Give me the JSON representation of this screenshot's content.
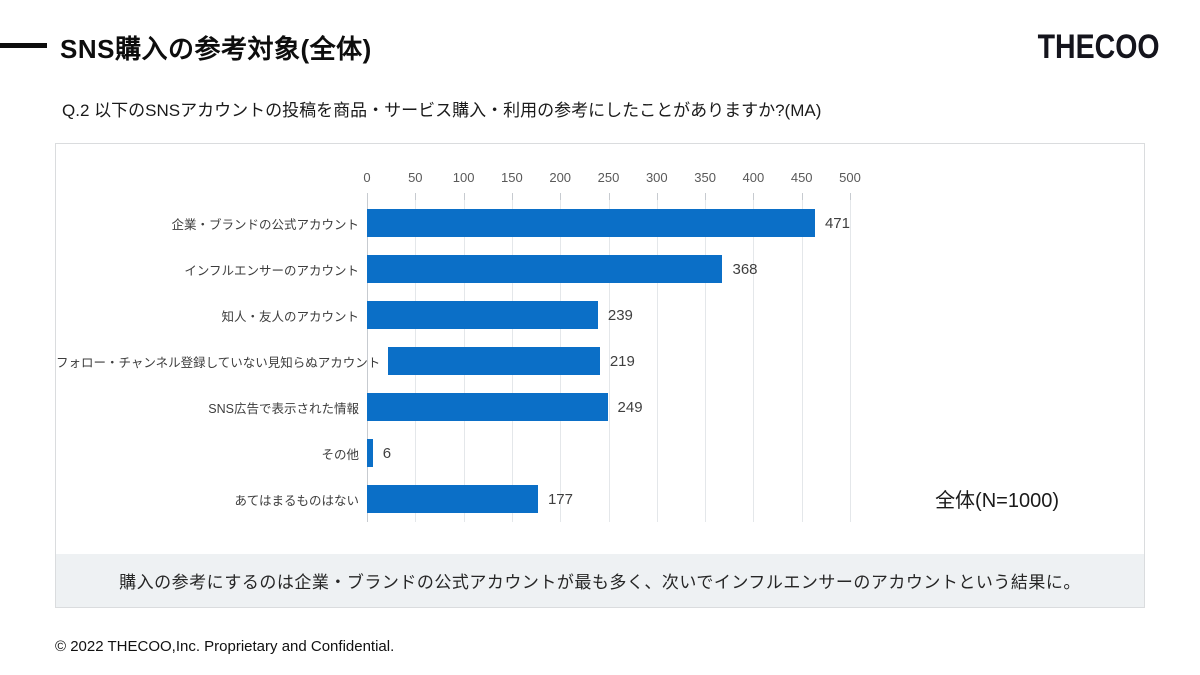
{
  "header": {
    "title": "SNS購入の参考対象(全体)",
    "logo": "THECOO"
  },
  "question": "Q.2 以下のSNSアカウントの投稿を商品・サービス購入・利用の参考にしたことがありますか?(MA)",
  "chart_data": {
    "type": "bar",
    "orientation": "horizontal",
    "title": "",
    "categories": [
      "企業・ブランドの公式アカウント",
      "インフルエンサーのアカウント",
      "知人・友人のアカウント",
      "フォロー・チャンネル登録していない見知らぬアカウント",
      "SNS広告で表示された情報",
      "その他",
      "あてはまるものはない"
    ],
    "values": [
      471,
      368,
      239,
      219,
      249,
      6,
      177
    ],
    "xlim": [
      0,
      500
    ],
    "xticks": [
      0,
      50,
      100,
      150,
      200,
      250,
      300,
      350,
      400,
      450,
      500
    ],
    "grid": true,
    "bar_color": "#0b6fc7",
    "sample_label": "全体(N=1000)"
  },
  "callout": "購入の参考にするのは企業・ブランドの公式アカウントが最も多く、次いでインフルエンサーのアカウントという結果に。",
  "footer": "© 2022 THECOO,Inc. Proprietary and Confidential."
}
